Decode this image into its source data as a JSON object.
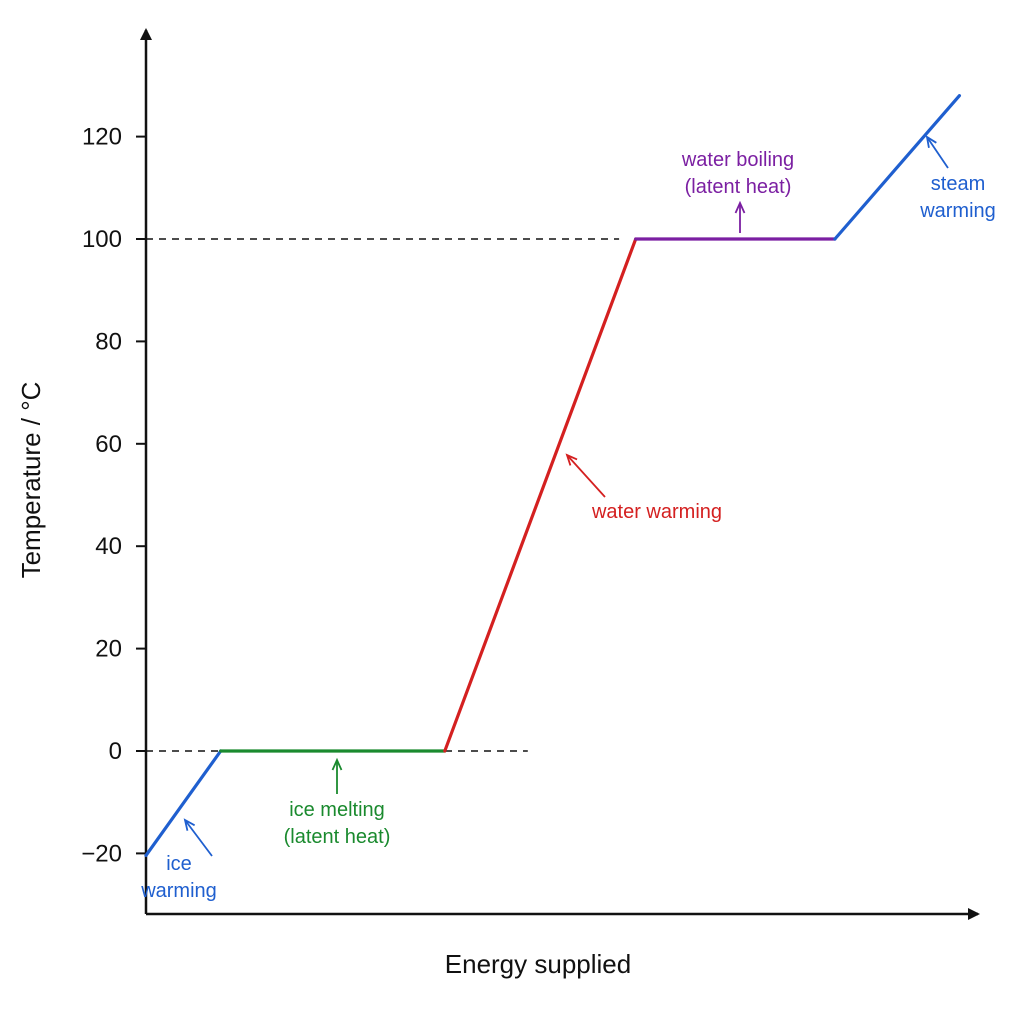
{
  "chart_data": {
    "type": "line",
    "title": "",
    "xlabel": "Energy supplied",
    "ylabel": "Temperature / °C",
    "ylim": [
      -20,
      120
    ],
    "yticks": [
      120,
      100,
      80,
      60,
      40,
      20,
      0,
      -20
    ],
    "ytick_labels": [
      "120",
      "100",
      "80",
      "60",
      "40",
      "20",
      "0",
      "−20"
    ],
    "reference_lines": [
      {
        "y": 100
      },
      {
        "y": 0
      }
    ],
    "segments": [
      {
        "stage": "ice warming",
        "color": "#1f5fcf",
        "points": [
          [
            0,
            -20.4
          ],
          [
            9,
            0
          ]
        ]
      },
      {
        "stage": "ice melting",
        "color": "#1a8a2e",
        "points": [
          [
            9,
            0
          ],
          [
            36,
            0
          ]
        ]
      },
      {
        "stage": "water warming",
        "color": "#d42020",
        "points": [
          [
            36,
            0
          ],
          [
            59,
            100
          ]
        ]
      },
      {
        "stage": "water boiling",
        "color": "#7b1fa2",
        "points": [
          [
            59,
            100
          ],
          [
            83,
            100
          ]
        ]
      },
      {
        "stage": "steam warming",
        "color": "#1f5fcf",
        "points": [
          [
            83,
            100
          ],
          [
            98,
            128
          ]
        ]
      }
    ],
    "annotations": [
      {
        "lines": [
          "ice",
          "warming"
        ],
        "color": "#1f5fcf"
      },
      {
        "lines": [
          "ice melting",
          "(latent heat)"
        ],
        "color": "#1a8a2e"
      },
      {
        "lines": [
          "water warming"
        ],
        "color": "#d42020"
      },
      {
        "lines": [
          "water boiling",
          "(latent heat)"
        ],
        "color": "#7b1fa2"
      },
      {
        "lines": [
          "steam",
          "warming"
        ],
        "color": "#1f5fcf"
      }
    ]
  }
}
